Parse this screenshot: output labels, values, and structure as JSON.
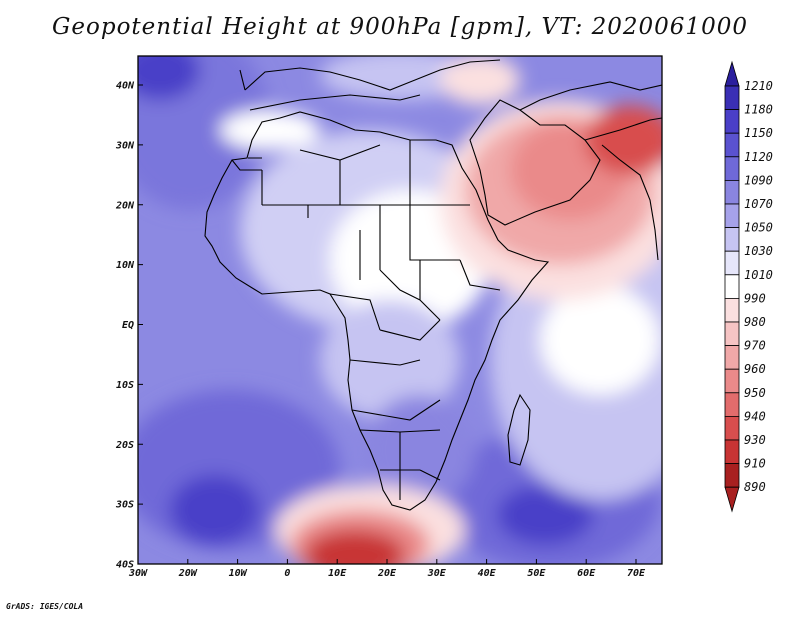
{
  "title": "Geopotential Height at 900hPa [gpm], VT: 2020061000",
  "credit": "GrADS: IGES/COLA",
  "chart_data": {
    "type": "heatmap",
    "title": "Geopotential Height at 900hPa [gpm], VT: 2020061000",
    "variable": "Geopotential Height",
    "units": "gpm",
    "level": "900hPa",
    "valid_time": "2020061000",
    "x_ticks": [
      "30W",
      "20W",
      "10W",
      "0",
      "10E",
      "20E",
      "30E",
      "40E",
      "50E",
      "60E",
      "70E"
    ],
    "y_ticks": [
      "40N",
      "30N",
      "20N",
      "10N",
      "EQ",
      "10S",
      "20S",
      "30S",
      "40S"
    ],
    "lon_range": [
      -30,
      75
    ],
    "lat_range": [
      -40,
      45
    ],
    "colorbar": {
      "levels": [
        "1210",
        "1180",
        "1150",
        "1120",
        "1090",
        "1070",
        "1050",
        "1030",
        "1010",
        "990",
        "980",
        "970",
        "960",
        "950",
        "940",
        "930",
        "910",
        "890"
      ],
      "colors": [
        "#2b1f9e",
        "#3a2fb5",
        "#4a3fc8",
        "#5a52d0",
        "#6f69d8",
        "#8a85e0",
        "#a6a2ea",
        "#c6c4f2",
        "#e6e6fa",
        "#ffffff",
        "#fbe0e0",
        "#f6c4c4",
        "#f0a8a8",
        "#ea8a8a",
        "#e26c6c",
        "#d84e4e",
        "#c83434",
        "#a82020"
      ]
    }
  }
}
